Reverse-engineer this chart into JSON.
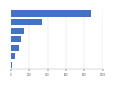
{
  "values": [
    870,
    335,
    145,
    115,
    85,
    48,
    12
  ],
  "bar_color": "#4472c4",
  "background_color": "#ffffff",
  "bar_height": 0.72,
  "xlim_max": 1000,
  "n_xticks": 6,
  "grid_color": "#d9d9d9",
  "spine_color": "#aaaaaa"
}
